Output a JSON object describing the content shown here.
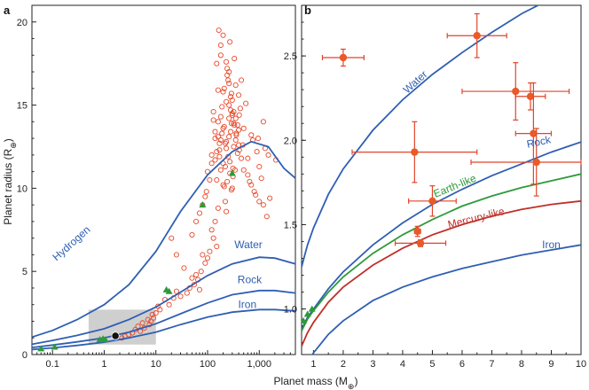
{
  "chart_data": [
    {
      "panel": "a",
      "type": "scatter",
      "xscale": "log",
      "xlim": [
        0.04,
        5000
      ],
      "ylim": [
        0,
        21
      ],
      "xlabel": "Planet mass (M⊕)",
      "ylabel": "Planet radius (R⊕)",
      "xtick_labels": [
        "0.1",
        "1",
        "10",
        "100",
        "1,000"
      ],
      "xticks": [
        0.1,
        1,
        10,
        100,
        1000
      ],
      "yticks": [
        0,
        5,
        10,
        15,
        20
      ],
      "curves": [
        {
          "name": "Hydrogen",
          "color": "#2f5fb3",
          "x": [
            0.04,
            0.1,
            0.3,
            1,
            3,
            10,
            30,
            100,
            300,
            700,
            1500,
            3000,
            5000
          ],
          "y": [
            1.05,
            1.45,
            2.1,
            3.0,
            4.2,
            6.2,
            8.6,
            10.8,
            12.2,
            12.8,
            12.5,
            11.2,
            10.6
          ]
        },
        {
          "name": "Water",
          "color": "#2f5fb3",
          "x": [
            0.04,
            0.1,
            0.3,
            1,
            3,
            10,
            30,
            100,
            300,
            1000,
            2000,
            5000
          ],
          "y": [
            0.62,
            0.85,
            1.15,
            1.55,
            2.1,
            2.85,
            3.75,
            4.75,
            5.45,
            5.85,
            5.8,
            5.45
          ]
        },
        {
          "name": "Rock",
          "color": "#2f5fb3",
          "x": [
            0.04,
            0.1,
            0.3,
            1,
            3,
            10,
            30,
            100,
            300,
            1000,
            2000,
            5000
          ],
          "y": [
            0.42,
            0.57,
            0.76,
            1.0,
            1.35,
            1.85,
            2.45,
            3.1,
            3.6,
            3.85,
            3.85,
            3.7
          ]
        },
        {
          "name": "Iron",
          "color": "#2f5fb3",
          "x": [
            0.04,
            0.1,
            0.3,
            1,
            3,
            10,
            30,
            100,
            300,
            1000,
            2000,
            5000
          ],
          "y": [
            0.3,
            0.4,
            0.55,
            0.74,
            1.0,
            1.35,
            1.8,
            2.25,
            2.55,
            2.7,
            2.7,
            2.62
          ]
        }
      ],
      "curve_labels": [
        {
          "text": "Hydrogen",
          "x": 0.12,
          "y": 5.6,
          "rotate": -42
        },
        {
          "text": "Water",
          "x": 330,
          "y": 6.4,
          "rotate": 0
        },
        {
          "text": "Rock",
          "x": 380,
          "y": 4.3,
          "rotate": 0
        },
        {
          "text": "Iron",
          "x": 390,
          "y": 2.8,
          "rotate": 0
        }
      ],
      "shaded_region": {
        "x": [
          0.5,
          10
        ],
        "y": [
          0.6,
          2.7
        ],
        "color": "#cfcfcf"
      },
      "open_circles": {
        "color": "#e8492a",
        "x": [
          165,
          150,
          270,
          330,
          240,
          350,
          280,
          200,
          230,
          190,
          130,
          300,
          260,
          290,
          210,
          400,
          360,
          160,
          180,
          170,
          320,
          410,
          380,
          250,
          140,
          120,
          220,
          340,
          270,
          310,
          150,
          200,
          430,
          500,
          480,
          700,
          900,
          1200,
          1000,
          1100,
          600,
          650,
          750,
          800,
          550,
          450,
          950,
          1300,
          1500,
          2100,
          240,
          180,
          210,
          260,
          300,
          330,
          160,
          140,
          120,
          100,
          110,
          95,
          80,
          90,
          70,
          60,
          50,
          200,
          230,
          280,
          350,
          400,
          250,
          260,
          190,
          170,
          180,
          300,
          220,
          230,
          160,
          140,
          120,
          130,
          150,
          110,
          100,
          90,
          80,
          75,
          60,
          65,
          55,
          45,
          40,
          30,
          25,
          22,
          18,
          15,
          12,
          11,
          10,
          9,
          8.5,
          8,
          7.5,
          7,
          6,
          5.5,
          5,
          4.5,
          4,
          3.5,
          3,
          2.5,
          2.2,
          20,
          25,
          35,
          50,
          70,
          300,
          320,
          280,
          260,
          220,
          200,
          180,
          160,
          350,
          380,
          410,
          450,
          500,
          600,
          700,
          850,
          1000,
          1200,
          1400,
          1600,
          180,
          200,
          230,
          260,
          290,
          320,
          360,
          400,
          170,
          150,
          140,
          130,
          230,
          270,
          310,
          210,
          240,
          290
        ],
        "y": [
          19.5,
          17.5,
          18.8,
          17.8,
          16.8,
          16.2,
          15.5,
          15.8,
          15.2,
          14.9,
          14.6,
          14.4,
          14.2,
          13.9,
          13.7,
          13.5,
          13.3,
          13.1,
          12.9,
          12.7,
          12.5,
          12.3,
          12.1,
          11.9,
          11.7,
          11.5,
          11.3,
          11.1,
          10.9,
          10.7,
          10.5,
          10.2,
          14.8,
          13.6,
          12.6,
          13.2,
          12.2,
          14.0,
          11.3,
          10.6,
          11.8,
          10.4,
          12.9,
          9.8,
          15.1,
          16.5,
          13.0,
          12.4,
          12.0,
          11.7,
          17.2,
          18.0,
          16.0,
          15.0,
          14.5,
          13.8,
          14.0,
          13.0,
          12.0,
          11.0,
          10.5,
          9.8,
          9.0,
          9.5,
          8.5,
          8.0,
          7.2,
          11.5,
          12.8,
          13.4,
          14.2,
          15.6,
          16.5,
          17.0,
          13.3,
          12.3,
          11.1,
          10.0,
          9.2,
          8.6,
          8.8,
          8.0,
          7.5,
          7.0,
          6.5,
          6.2,
          5.8,
          5.5,
          6.0,
          5.0,
          4.8,
          4.5,
          4.2,
          4.0,
          3.7,
          3.5,
          3.8,
          3.4,
          3.0,
          3.3,
          2.7,
          2.9,
          2.5,
          2.2,
          2.4,
          2.0,
          1.8,
          2.1,
          1.6,
          1.9,
          1.4,
          1.7,
          1.5,
          1.3,
          1.2,
          1.1,
          1.0,
          7.0,
          6.0,
          5.2,
          4.6,
          3.9,
          15.3,
          13.9,
          14.7,
          13.1,
          12.7,
          13.6,
          14.3,
          15.9,
          12.9,
          13.8,
          14.4,
          11.8,
          11.1,
          10.8,
          10.2,
          9.6,
          9.2,
          9.0,
          8.3,
          9.4,
          18.6,
          19.2,
          17.6,
          16.3,
          15.7,
          14.6,
          13.2,
          12.6,
          11.9,
          12.2,
          13.4,
          14.1,
          12.4,
          11.6,
          11.2,
          10.1,
          10.4,
          9.9
        ]
      },
      "triangles": {
        "color": "#2e9a3a",
        "x": [
          0.06,
          0.11,
          0.82,
          0.95,
          1.05,
          16,
          18,
          80,
          300
        ],
        "y": [
          0.35,
          0.45,
          0.9,
          0.95,
          0.9,
          3.9,
          3.8,
          9.0,
          10.9
        ]
      },
      "black_point": {
        "x": 1.65,
        "y": 1.12
      }
    },
    {
      "panel": "b",
      "type": "scatter",
      "xlim": [
        0.6,
        10
      ],
      "ylim": [
        0.73,
        2.8
      ],
      "xticks": [
        1,
        2,
        3,
        4,
        5,
        6,
        7,
        8,
        9,
        10
      ],
      "yticks": [
        1.0,
        1.5,
        2.0,
        2.5
      ],
      "ytick_labels": [
        "1.0",
        "1.5",
        "2.0",
        "2.5"
      ],
      "curves": [
        {
          "name": "Water",
          "color": "#2f5fb3",
          "x": [
            0.6,
            0.8,
            1,
            1.5,
            2,
            3,
            4,
            5,
            6,
            7,
            8,
            9,
            10
          ],
          "y": [
            1.25,
            1.38,
            1.48,
            1.68,
            1.83,
            2.06,
            2.24,
            2.39,
            2.52,
            2.64,
            2.75,
            2.84,
            2.93
          ]
        },
        {
          "name": "Rock",
          "color": "#2f5fb3",
          "x": [
            0.6,
            0.8,
            1,
            1.5,
            2,
            3,
            4,
            5,
            6,
            7,
            8,
            9,
            10
          ],
          "y": [
            0.88,
            0.95,
            1.0,
            1.12,
            1.22,
            1.38,
            1.51,
            1.62,
            1.71,
            1.79,
            1.86,
            1.93,
            1.99
          ]
        },
        {
          "name": "Earth-like",
          "color": "#2e9a3a",
          "x": [
            0.6,
            0.8,
            1,
            1.5,
            2,
            3,
            4,
            5,
            6,
            7,
            8,
            9,
            10
          ],
          "y": [
            0.87,
            0.94,
            0.99,
            1.1,
            1.19,
            1.33,
            1.44,
            1.53,
            1.61,
            1.67,
            1.72,
            1.76,
            1.8
          ]
        },
        {
          "name": "Mercury-like",
          "color": "#c0302a",
          "x": [
            0.6,
            0.8,
            1,
            1.5,
            2,
            3,
            4,
            5,
            6,
            7,
            8,
            9,
            10
          ],
          "y": [
            0.78,
            0.86,
            0.92,
            1.04,
            1.13,
            1.26,
            1.36,
            1.44,
            1.5,
            1.55,
            1.59,
            1.62,
            1.64
          ]
        },
        {
          "name": "Iron",
          "color": "#2f5fb3",
          "x": [
            0.6,
            0.8,
            1,
            1.5,
            2,
            3,
            4,
            5,
            6,
            7,
            8,
            9,
            10
          ],
          "y": [
            0.6,
            0.68,
            0.74,
            0.85,
            0.93,
            1.05,
            1.13,
            1.19,
            1.24,
            1.28,
            1.32,
            1.35,
            1.38
          ]
        }
      ],
      "curve_labels": [
        {
          "text": "Water",
          "x": 4.5,
          "y": 2.33,
          "rotate": -42,
          "color": "#2f5fb3"
        },
        {
          "text": "Rock",
          "x": 8.6,
          "y": 1.97,
          "rotate": -12,
          "color": "#2f5fb3"
        },
        {
          "text": "Earth-like",
          "x": 5.8,
          "y": 1.71,
          "rotate": -22,
          "color": "#2e9a3a"
        },
        {
          "text": "Mercury-like",
          "x": 6.5,
          "y": 1.52,
          "rotate": -14,
          "color": "#c0302a"
        },
        {
          "text": "Iron",
          "x": 9.0,
          "y": 1.36,
          "rotate": 0,
          "color": "#2f5fb3"
        }
      ],
      "points": {
        "color": "#e85a2a",
        "errbar_color": "#e0452a",
        "x": [
          2.0,
          6.5,
          7.8,
          8.3,
          8.4,
          8.5,
          4.4,
          5.0,
          4.5,
          4.6
        ],
        "y": [
          2.49,
          2.62,
          2.29,
          2.26,
          2.04,
          1.87,
          1.93,
          1.64,
          1.46,
          1.39
        ],
        "xerr": [
          0.7,
          1.0,
          1.8,
          0.5,
          0.6,
          2.2,
          2.1,
          0.8,
          0.1,
          0.85
        ],
        "yerr": [
          0.05,
          0.13,
          0.17,
          0.08,
          0.3,
          0.2,
          0.18,
          0.09,
          0.03,
          0.02
        ]
      }
    }
  ],
  "labels": {
    "panel_a_letter": "a",
    "panel_b_letter": "b",
    "ylabel_main": "Planet radius (R",
    "ylabel_sub": "⊕",
    "ylabel_end": ")",
    "xlabel_main": "Planet mass (M",
    "xlabel_sub": "⊕",
    "xlabel_end": ")"
  }
}
